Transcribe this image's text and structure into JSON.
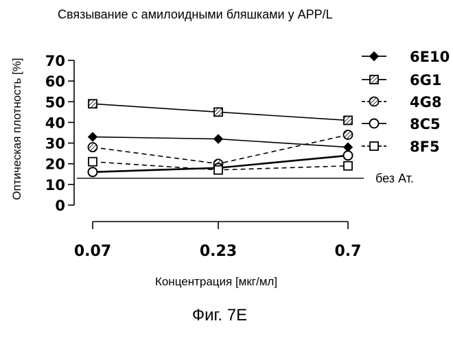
{
  "figure_label": "Фиг. 7E",
  "chart_data": {
    "type": "line",
    "title": "Связывание с амилоидными бляшками у APP/L",
    "xlabel": "Концентрация [мкг/мл]",
    "ylabel": "Оптическая плотность [%]",
    "categories": [
      "0.07",
      "0.23",
      "0.7"
    ],
    "ylim": [
      0,
      70
    ],
    "yticks": [
      "0",
      "10",
      "20",
      "30",
      "40",
      "50",
      "60",
      "70"
    ],
    "grid": false,
    "legend_position": "right",
    "reference_line": {
      "label": "без Ат.",
      "value": 13
    },
    "series": [
      {
        "name": "6E10",
        "values": [
          33,
          32,
          28
        ],
        "marker": "diamond-filled",
        "line": "solid",
        "width": 1.6
      },
      {
        "name": "6G1",
        "values": [
          49,
          45,
          41
        ],
        "marker": "square-hatched",
        "line": "solid",
        "width": 1.6
      },
      {
        "name": "4G8",
        "values": [
          28,
          20,
          34
        ],
        "marker": "circle-hatched",
        "line": "dashed",
        "width": 1.6
      },
      {
        "name": "8C5",
        "values": [
          16,
          18,
          24
        ],
        "marker": "circle-open",
        "line": "solid",
        "width": 2.6
      },
      {
        "name": "8F5",
        "values": [
          21,
          17,
          19
        ],
        "marker": "square-open",
        "line": "dashed",
        "width": 1.6
      }
    ]
  }
}
